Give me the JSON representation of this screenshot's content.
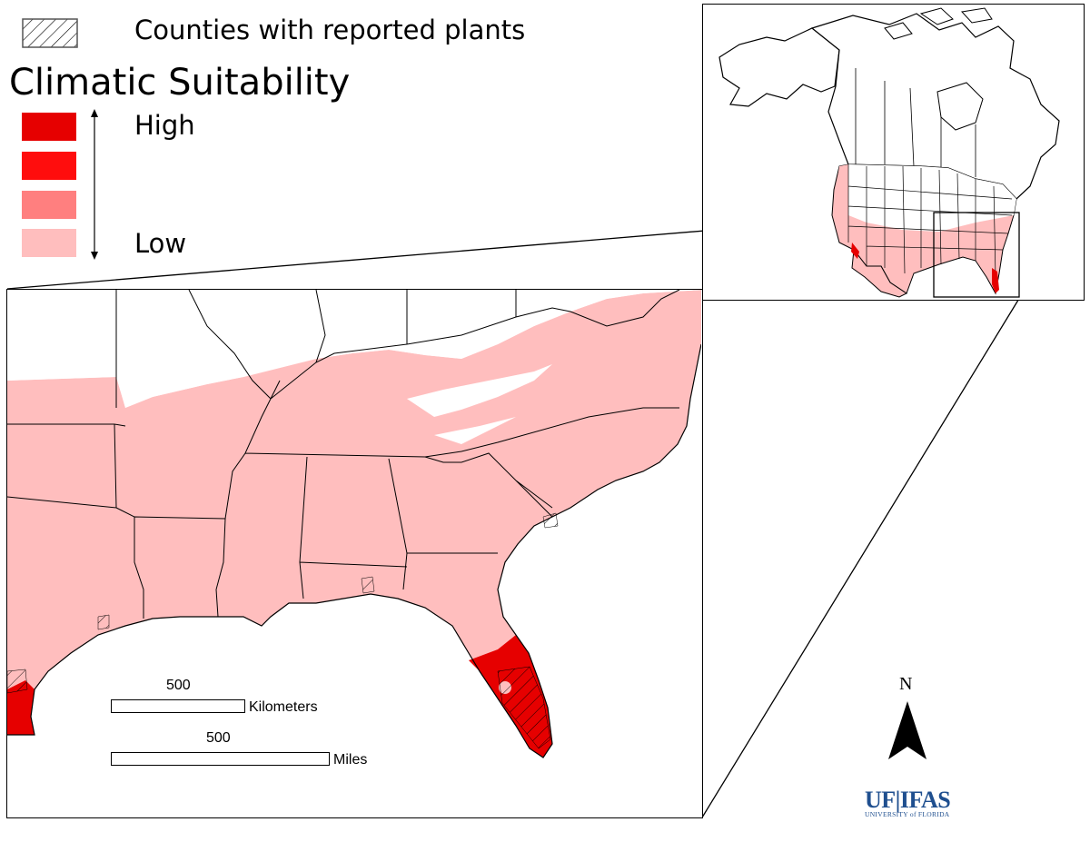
{
  "legend": {
    "hatch_label": "Counties with reported plants",
    "title": "Climatic Suitability",
    "high_label": "High",
    "low_label": "Low",
    "classes": [
      {
        "level": "very high",
        "color": "#e60000"
      },
      {
        "level": "high",
        "color": "#ff0d0d"
      },
      {
        "level": "medium",
        "color": "#ff7f7f"
      },
      {
        "level": "low",
        "color": "#ffbebe"
      }
    ]
  },
  "scale_bars": {
    "km_value": "500",
    "km_unit": "Kilometers",
    "mi_value": "500",
    "mi_unit": "Miles"
  },
  "north_arrow": {
    "label": "N"
  },
  "logo": {
    "main": "UF|IFAS",
    "sub": "UNIVERSITY of FLORIDA"
  },
  "colors": {
    "low_suitability": "#ffbebe",
    "high_suitability": "#e60000",
    "border": "#000000",
    "logo_blue": "#1f4f8f"
  }
}
